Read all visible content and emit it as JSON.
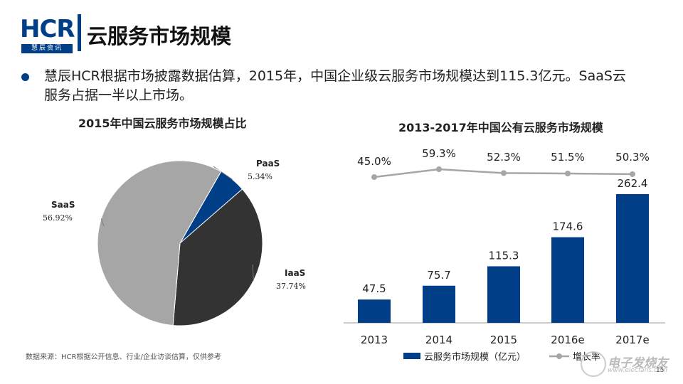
{
  "logo": {
    "text": "HCR",
    "sub": "慧辰资讯"
  },
  "page_title": "云服务市场规模",
  "bullet": {
    "line1": "慧辰HCR根据市场披露数据估算，2015年，中国企业级云服务市场规模达到115.3亿元。SaaS云",
    "line2": "服务占据一半以上市场。"
  },
  "source_note": "数据来源：HCR根据公开信息、行业/企业访谈估算，仅供参考",
  "watermark": {
    "text": "电子发烧友",
    "url": "www.elecfans.com"
  },
  "page_number": "15",
  "colors": {
    "brand": "#003f87",
    "saas": "#a6a6a6",
    "iaas": "#333333",
    "paas": "#003f87",
    "line": "#a6a6a6"
  },
  "chart_data": [
    {
      "type": "pie",
      "title": "2015年中国云服务市场规模占比",
      "slices": [
        {
          "name": "PaaS",
          "value": 5.34,
          "label": "5.34%"
        },
        {
          "name": "IaaS",
          "value": 37.74,
          "label": "37.74%"
        },
        {
          "name": "SaaS",
          "value": 56.92,
          "label": "56.92%"
        }
      ]
    },
    {
      "type": "bar",
      "title": "2013-2017年中国公有云服务市场规模",
      "categories": [
        "2013",
        "2014",
        "2015",
        "2016e",
        "2017e"
      ],
      "series": [
        {
          "name": "云服务市场规模（亿元）",
          "kind": "bar",
          "values": [
            47.5,
            75.7,
            115.3,
            174.6,
            262.4
          ],
          "labels": [
            "47.5",
            "75.7",
            "115.3",
            "174.6",
            "262.4"
          ]
        },
        {
          "name": "增长率",
          "kind": "line",
          "values": [
            45.0,
            59.3,
            52.3,
            51.5,
            50.3
          ],
          "labels": [
            "45.0%",
            "59.3%",
            "52.3%",
            "51.5%",
            "50.3%"
          ]
        }
      ],
      "legend": [
        "云服务市场规模（亿元）",
        "增长率"
      ],
      "legend_position": "bottom"
    }
  ]
}
